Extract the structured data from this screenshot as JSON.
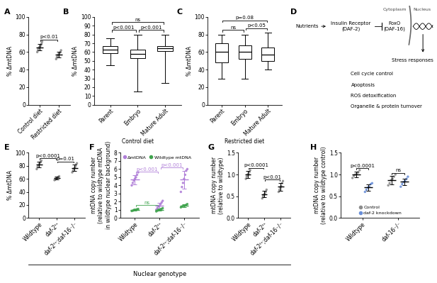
{
  "chart_data": [
    {
      "panel": "A",
      "type": "dot",
      "ylabel": "% ΔmtDNA",
      "categories": [
        "Control diet",
        "Restricted diet"
      ],
      "ylim": [
        0,
        100
      ],
      "yticks": [
        0,
        20,
        40,
        60,
        80,
        100
      ],
      "series": [
        {
          "color": "#8c8c8c",
          "points": [
            [
              60,
              62,
              64,
              65,
              66,
              67,
              68,
              70,
              72
            ],
            [
              52,
              54,
              55,
              57,
              58,
              59,
              60,
              62
            ]
          ],
          "mean": [
            65.5,
            57
          ],
          "sd": [
            3.8,
            3.2
          ]
        }
      ],
      "comparisons": [
        {
          "groups": [
            0,
            1
          ],
          "label": "p<0.01"
        }
      ]
    },
    {
      "panel": "B",
      "type": "box",
      "ylabel": "% ΔmtDNA",
      "xlabel": "Control diet",
      "categories": [
        "Parent",
        "Embryo",
        "Mature Adult"
      ],
      "ylim": [
        0,
        100
      ],
      "yticks": [
        0,
        10,
        20,
        30,
        40,
        50,
        60,
        70,
        80,
        90,
        100
      ],
      "boxes": [
        {
          "whislo": 45,
          "q1": 59,
          "med": 63,
          "q3": 67,
          "whishi": 76
        },
        {
          "whislo": 15,
          "q1": 53,
          "med": 58,
          "q3": 63,
          "whishi": 80
        },
        {
          "whislo": 25,
          "q1": 61,
          "med": 64,
          "q3": 67,
          "whishi": 80
        }
      ],
      "comparisons": [
        {
          "groups": [
            0,
            1
          ],
          "label": "p<0.001"
        },
        {
          "groups": [
            1,
            2
          ],
          "label": "p<0.001"
        },
        {
          "groups": [
            0,
            2
          ],
          "label": "ns"
        }
      ]
    },
    {
      "panel": "C",
      "type": "box",
      "ylabel": "% ΔmtDNA",
      "xlabel": "Restricted diet",
      "categories": [
        "Parent",
        "Embryo",
        "Mature Adult"
      ],
      "ylim": [
        0,
        100
      ],
      "yticks": [
        0,
        20,
        40,
        60,
        80,
        100
      ],
      "boxes": [
        {
          "whislo": 30,
          "q1": 48,
          "med": 60,
          "q3": 70,
          "whishi": 80
        },
        {
          "whislo": 30,
          "q1": 52,
          "med": 60,
          "q3": 68,
          "whishi": 80
        },
        {
          "whislo": 40,
          "q1": 50,
          "med": 57,
          "q3": 65,
          "whishi": 82
        }
      ],
      "comparisons": [
        {
          "groups": [
            0,
            1
          ],
          "label": "ns"
        },
        {
          "groups": [
            1,
            2
          ],
          "label": "p<0.05"
        },
        {
          "groups": [
            0,
            2
          ],
          "label": "p=0.08"
        }
      ]
    },
    {
      "panel": "E",
      "type": "dot",
      "ylabel": "% ΔmtDNA",
      "categories": [
        "Wildtype",
        "daf-2ᵗˢ",
        "daf-2ᵗˢ;daf-16⁻/⁻"
      ],
      "ylim": [
        0,
        100
      ],
      "yticks": [
        0,
        20,
        40,
        60,
        80,
        100
      ],
      "series": [
        {
          "color": "#8c8c8c",
          "points": [
            [
              75,
              78,
              80,
              82,
              84,
              86,
              88
            ],
            [
              58,
              59,
              60,
              61,
              62,
              63,
              64
            ],
            [
              70,
              72,
              75,
              77,
              79,
              82,
              84
            ]
          ],
          "mean": [
            82,
            61,
            77
          ],
          "sd": [
            4.5,
            2,
            4.8
          ]
        }
      ],
      "comparisons": [
        {
          "groups": [
            0,
            1
          ],
          "label": "p<0.0001"
        },
        {
          "groups": [
            1,
            2
          ],
          "label": "p=0.01"
        }
      ]
    },
    {
      "panel": "F",
      "type": "dot",
      "ylabel": "mtDNA copy number\n(relative to wildtype mtDNA\nin wildtype nuclear background)",
      "categories": [
        "Wildtype",
        "daf-2ᵗˢ",
        "daf-2ᵗˢ;daf-16⁻/⁻"
      ],
      "ylim": [
        0,
        8
      ],
      "yticks": [
        0,
        1,
        2,
        3,
        4,
        5,
        6,
        7,
        8
      ],
      "legend": "upper left",
      "series": [
        {
          "name": "ΔmtDNA",
          "color": "#b07fd8",
          "points": [
            [
              4.0,
              4.3,
              4.6,
              4.8,
              5.0,
              5.3,
              5.6
            ],
            [
              1.0,
              1.2,
              1.4,
              1.5,
              1.7,
              1.9,
              2.1
            ],
            [
              3.2,
              3.8,
              4.3,
              4.8,
              5.3,
              5.8,
              6.0
            ]
          ],
          "mean": [
            4.7,
            1.5,
            4.7
          ],
          "sd": [
            0.55,
            0.35,
            1.1
          ]
        },
        {
          "name": "Wildtype mtDNA",
          "color": "#3fa34d",
          "points": [
            [
              0.85,
              0.9,
              1.0,
              1.0,
              1.05,
              1.1
            ],
            [
              0.8,
              0.9,
              1.0,
              1.05,
              1.1,
              1.2
            ],
            [
              1.3,
              1.4,
              1.5,
              1.5,
              1.6,
              1.7
            ]
          ],
          "mean": [
            1.0,
            1.0,
            1.5
          ],
          "sd": [
            0.1,
            0.15,
            0.15
          ]
        }
      ],
      "comparisons": [
        {
          "groups": [
            0,
            1
          ],
          "series": 0,
          "label": "p<0.001",
          "color": "#b07fd8"
        },
        {
          "groups": [
            1,
            2
          ],
          "series": 0,
          "label": "p<0.001",
          "color": "#b07fd8"
        },
        {
          "groups": [
            0,
            1
          ],
          "series": 1,
          "label": "ns",
          "color": "#3fa34d"
        }
      ]
    },
    {
      "panel": "G",
      "type": "dot",
      "ylabel": "mtDNA copy number\n(relative to wildtype)",
      "categories": [
        "Wildtype",
        "daf-2ᵗˢ",
        "daf-2ᵗˢ;daf-16⁻/⁻"
      ],
      "ylim": [
        0,
        1.5
      ],
      "yticks": [
        {
          "value": 0,
          "label": "0.0"
        },
        0.5,
        {
          "value": 1,
          "label": "1.0"
        },
        1.5
      ],
      "series": [
        {
          "color": "#8c8c8c",
          "points": [
            [
              0.9,
              0.95,
              1.0,
              1.0,
              1.05,
              1.1
            ],
            [
              0.45,
              0.5,
              0.53,
              0.56,
              0.6,
              0.65
            ],
            [
              0.6,
              0.65,
              0.7,
              0.73,
              0.8,
              0.85
            ]
          ],
          "mean": [
            1.0,
            0.55,
            0.72
          ],
          "sd": [
            0.08,
            0.07,
            0.09
          ]
        }
      ],
      "comparisons": [
        {
          "groups": [
            0,
            1
          ],
          "label": "p<0.0001"
        },
        {
          "groups": [
            1,
            2
          ],
          "label": "p<0.01"
        }
      ]
    },
    {
      "panel": "H",
      "type": "grouped_dot",
      "ylabel": "mtDNA copy number\n(relative to wildtype control)",
      "categories": [
        "Wildtype",
        "daf-16⁻/⁻"
      ],
      "ylim": [
        0,
        1.5
      ],
      "yticks": [
        {
          "value": 0,
          "label": "0.0"
        },
        0.5,
        {
          "value": 1,
          "label": "1.0"
        },
        1.5
      ],
      "legend": "lower center",
      "series": [
        {
          "name": "Control",
          "color": "#8c8c8c",
          "points": [
            [
              0.92,
              0.97,
              1.0,
              1.02,
              1.05,
              1.1
            ],
            [
              0.75,
              0.8,
              0.87,
              0.9,
              0.95,
              1.0
            ]
          ],
          "mean": [
            1.0,
            0.87
          ],
          "sd": [
            0.07,
            0.09
          ]
        },
        {
          "name": "daf-2 knockdown",
          "color": "#6a8fd8",
          "points": [
            [
              0.6,
              0.65,
              0.7,
              0.72,
              0.78,
              0.8
            ],
            [
              0.72,
              0.78,
              0.83,
              0.85,
              0.9,
              0.95
            ]
          ],
          "mean": [
            0.7,
            0.83
          ],
          "sd": [
            0.07,
            0.08
          ]
        }
      ],
      "comparisons": [
        {
          "category": 0,
          "label": "p<0.0001"
        },
        {
          "category": 1,
          "label": "ns"
        }
      ]
    }
  ],
  "shared_xlabel": "Nuclear genotype",
  "diagram": {
    "panel": "D",
    "nutrients": "Nutrients",
    "receptor": "Insulin Receptor\n(DAF-2)",
    "foxo": "FoxO\n(DAF-16)",
    "cytoplasm": "Cytoplasm",
    "nucleus": "Nucleus",
    "stress": "Stress responses",
    "responses": [
      "Cell cycle control",
      "Apoptosis",
      "ROS detoxification",
      "Organelle & protein turnover"
    ]
  }
}
